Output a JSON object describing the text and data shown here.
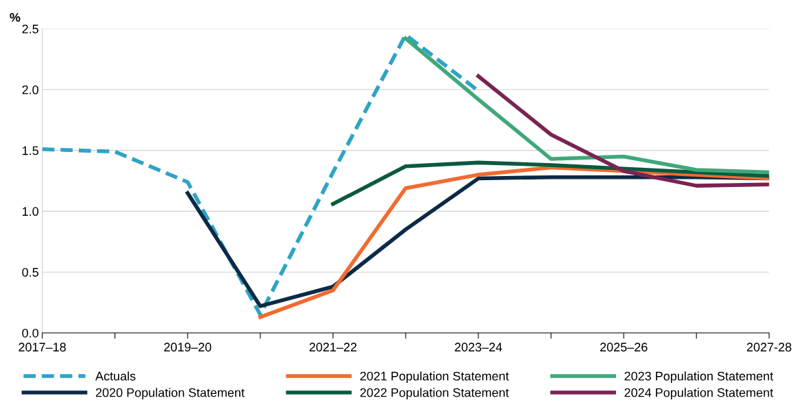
{
  "chart_data": {
    "type": "line",
    "ylabel": "%",
    "categories": [
      "2017–18",
      null,
      "2019–20",
      null,
      "2021–22",
      null,
      "2023–24",
      null,
      "2025–26",
      null,
      "2027-28"
    ],
    "ylim": [
      0,
      2.5
    ],
    "yticks": [
      {
        "value": 0,
        "label": "0.0"
      },
      {
        "value": 0.5,
        "label": "0.5"
      },
      {
        "value": 1,
        "label": "1.0"
      },
      {
        "value": 1.5,
        "label": "1.5"
      },
      {
        "value": 2,
        "label": "2.0"
      },
      {
        "value": 2.5,
        "label": "2.5"
      }
    ],
    "grid": "y",
    "legend": "bottom",
    "marker": "none",
    "series": [
      {
        "name": "Actuals",
        "color": "#2fa3c6",
        "line_style": "dashed",
        "values": [
          1.51,
          1.49,
          1.24,
          0.15,
          1.32,
          2.45,
          1.99,
          null,
          null,
          null,
          null
        ]
      },
      {
        "name": "2020 Population Statement",
        "color": "#0b2a45",
        "line_style": "solid",
        "values": [
          null,
          null,
          1.15,
          0.22,
          0.38,
          0.85,
          1.27,
          1.28,
          1.28,
          1.28,
          1.27
        ]
      },
      {
        "name": "2021 Population Statement",
        "color": "#f26b2f",
        "line_style": "solid",
        "values": [
          null,
          null,
          null,
          0.13,
          0.35,
          1.19,
          1.3,
          1.36,
          1.33,
          1.3,
          1.27
        ]
      },
      {
        "name": "2022 Population Statement",
        "color": "#0b5a3e",
        "line_style": "solid",
        "values": [
          null,
          null,
          null,
          null,
          1.06,
          1.37,
          1.4,
          1.38,
          1.35,
          1.32,
          1.29
        ]
      },
      {
        "name": "2023 Population Statement",
        "color": "#3fa87a",
        "line_style": "solid",
        "values": [
          null,
          null,
          null,
          null,
          null,
          2.42,
          1.92,
          1.43,
          1.45,
          1.34,
          1.32
        ]
      },
      {
        "name": "2024 Population Statement",
        "color": "#7a2352",
        "line_style": "solid",
        "values": [
          null,
          null,
          null,
          null,
          null,
          null,
          2.11,
          1.63,
          1.33,
          1.21,
          1.22
        ]
      }
    ]
  }
}
